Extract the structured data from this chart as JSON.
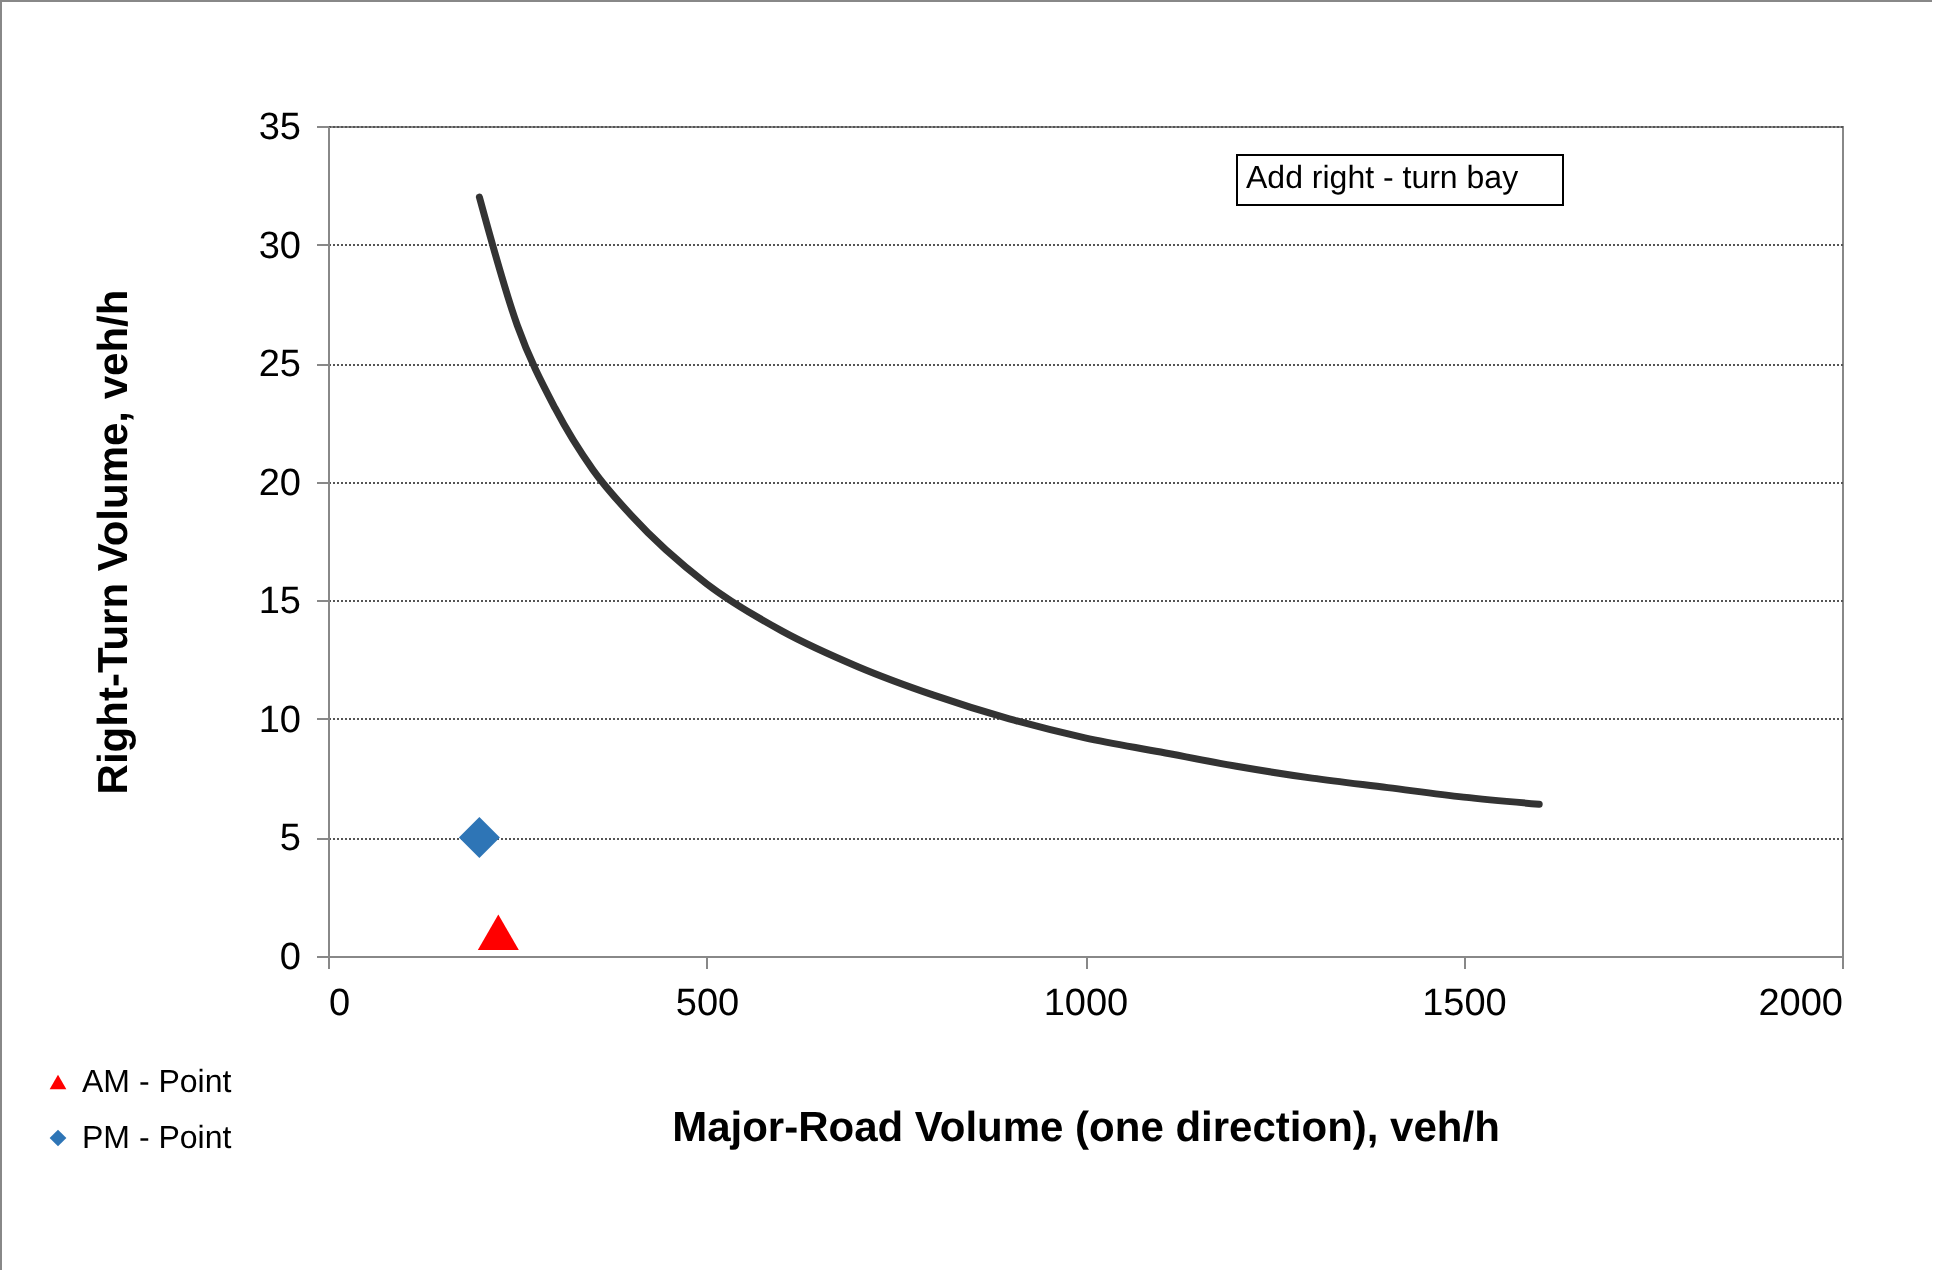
{
  "chart_data": {
    "type": "line",
    "xlabel": "Major-Road Volume (one direction), veh/h",
    "ylabel": "Right-Turn Volume, veh/h",
    "annotations": [
      "Add right - turn bay"
    ],
    "series": [
      {
        "color": "#333333",
        "x": [
          200,
          250,
          300,
          350,
          400,
          500,
          600,
          700,
          800,
          900,
          1000,
          1100,
          1200,
          1300,
          1400,
          1500,
          1600
        ],
        "values": [
          32,
          26.6,
          23.1,
          20.5,
          18.6,
          15.7,
          13.7,
          12.2,
          11.0,
          10.0,
          9.2,
          8.6,
          8.0,
          7.5,
          7.1,
          6.7,
          6.4
        ]
      },
      {
        "type": "scatter",
        "name": "AM - Point",
        "color": "#ff0000",
        "marker": "triangle",
        "x": [
          225
        ],
        "values": [
          1
        ]
      },
      {
        "type": "scatter",
        "name": "PM - Point",
        "color": "#2e75b6",
        "marker": "diamond",
        "x": [
          200
        ],
        "values": [
          5
        ]
      }
    ],
    "xlim": [
      0,
      2000
    ],
    "xticks": [
      0,
      500,
      1000,
      1500,
      2000
    ],
    "ylim": [
      0,
      35
    ],
    "yticks": [
      0,
      5,
      10,
      15,
      20,
      25,
      30,
      35
    ],
    "grid": "y",
    "legend": "bottom left"
  }
}
